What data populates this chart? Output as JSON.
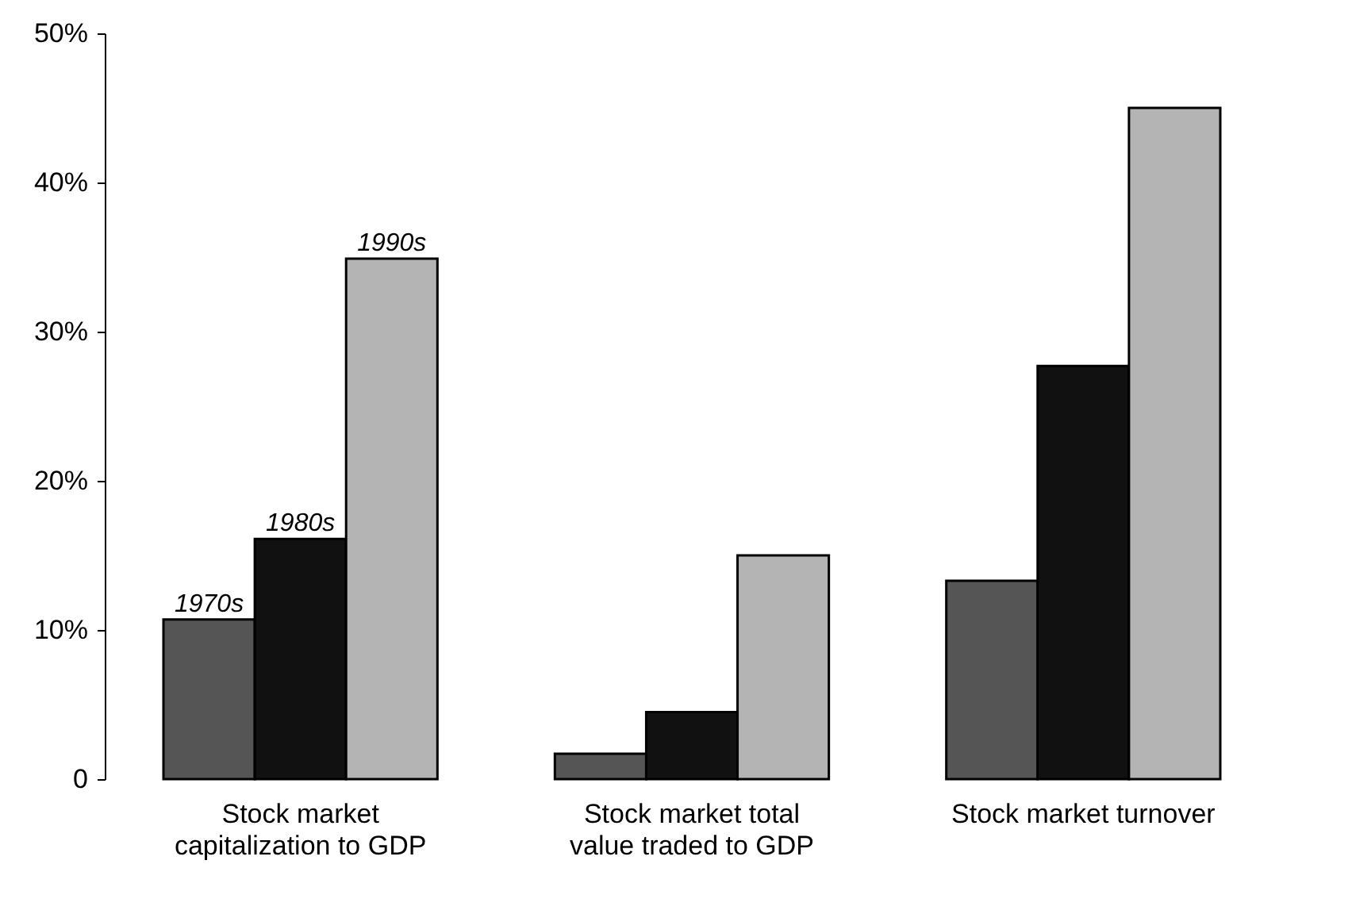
{
  "chart_data": {
    "type": "bar",
    "categories": [
      "Stock market capitalization to GDP",
      "Stock market total value traded to GDP",
      "Stock market turnover"
    ],
    "series": [
      {
        "name": "1970s",
        "color": "#555555",
        "values": [
          10.7,
          1.7,
          13.3
        ]
      },
      {
        "name": "1980s",
        "color": "#111111",
        "values": [
          16.1,
          4.5,
          27.7
        ]
      },
      {
        "name": "1990s",
        "color": "#b4b4b4",
        "values": [
          34.9,
          15.0,
          45.0
        ]
      }
    ],
    "ylim": [
      0,
      50
    ],
    "yticks": [
      0,
      {
        "value": 10,
        "label": "10%"
      },
      {
        "value": 20,
        "label": "20%"
      },
      {
        "value": 30,
        "label": "30%"
      },
      {
        "value": 40,
        "label": "40%"
      },
      {
        "value": 50,
        "label": "50%"
      }
    ],
    "grid": false,
    "legend": false
  }
}
